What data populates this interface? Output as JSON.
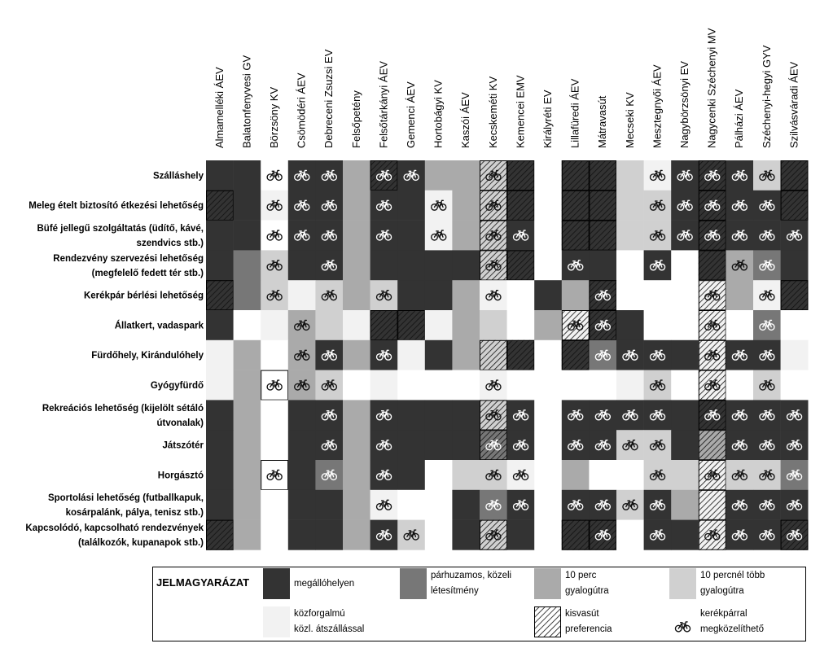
{
  "chart_data": {
    "type": "heatmap",
    "title": "",
    "xlabel": "",
    "ylabel": "",
    "columns": [
      "Almamelléki ÁEV",
      "Balatonfenyvesi GV",
      "Börzsöny KV",
      "Csömödéri ÁEV",
      "Debreceni Zsuzsi EV",
      "Felsőpetény",
      "Felsőtárkányi ÁEV",
      "Gemenci ÁEV",
      "Hortobágyi KV",
      "Kaszói ÁEV",
      "Kecskeméti KV",
      "Kemencei EMV",
      "Királyréti EV",
      "Lillafüredi ÁEV",
      "Mátravasút",
      "Mecseki KV",
      "Mesztegnyői ÁEV",
      "Nagybörzsönyi EV",
      "Nagycenki Széchenyi MV",
      "Pálházi ÁEV",
      "Széchenyi-hegyi GYV",
      "Szilvásváradi ÁEV"
    ],
    "rows": [
      [
        "Szálláshely"
      ],
      [
        "Meleg ételt biztosító étkezési lehetőség"
      ],
      [
        "Büfé jellegű szolgáltatás (üdítő, kávé,",
        "szendvics stb.)"
      ],
      [
        "Rendezvény szervezési lehetőség",
        "(megfelelő fedett tér stb.)"
      ],
      [
        "Kerékpár bérlési lehetőség"
      ],
      [
        "Állatkert, vadaspark"
      ],
      [
        "Fürdőhely, Kirándulóhely"
      ],
      [
        "Gyógyfürdő"
      ],
      [
        "Rekreációs lehetőség (kijelölt sétáló",
        "útvonalak)"
      ],
      [
        "Játszótér"
      ],
      [
        "Horgásztó"
      ],
      [
        "Sportolási lehetőség (futballkapuk,",
        "kosárpalánk, pálya, tenisz stb.)"
      ],
      [
        "Kapcsolódó, kapcsolható rendezvények",
        "(találkozók, kupanapok stb.)"
      ]
    ],
    "grid": [
      [
        "D1",
        "D1",
        "L3B",
        "D1B",
        "D1B",
        "M3",
        "D1HB",
        "D1B",
        "M3",
        "M3",
        "L4HB",
        "D1H",
        "N",
        "D1H",
        "D1H",
        "L4",
        "N5B",
        "D1B",
        "D1HB",
        "D1B",
        "L4B",
        "D1H"
      ],
      [
        "D1H",
        "D1",
        "N5B",
        "D1B",
        "D1B",
        "M3",
        "D1B",
        "D1",
        "N5B",
        "M3",
        "L4HB",
        "D1H",
        "N",
        "D1H",
        "D1H",
        "L4",
        "L4B",
        "D1B",
        "D1HB",
        "D1B",
        "D1B",
        "D1H"
      ],
      [
        "D1",
        "D1",
        "L3B",
        "D1B",
        "D1B",
        "M3",
        "D1B",
        "D1",
        "N5B",
        "M3",
        "L4HB",
        "D1B",
        "N",
        "D1H",
        "D1H",
        "L4",
        "L4B",
        "D1B",
        "D1HB",
        "D1B",
        "D1B",
        "D1B"
      ],
      [
        "D1",
        "P2",
        "L4B",
        "D1",
        "D1B",
        "M3",
        "D1",
        "D1",
        "D1",
        "D1",
        "L4HB",
        "D1H",
        "N",
        "D1B",
        "D1",
        "N",
        "D1B",
        "N",
        "D1H",
        "M3B",
        "P2B",
        "D1"
      ],
      [
        "D1H",
        "P2",
        "L4B",
        "N5",
        "L4B",
        "M3",
        "L4B",
        "D1",
        "D1",
        "M3",
        "N5B",
        "N",
        "D1",
        "M3",
        "D1HB",
        "N",
        "N",
        "N",
        "N5HB",
        "M3",
        "N5B",
        "D1H"
      ],
      [
        "D1",
        "N",
        "N5",
        "M3B",
        "L4",
        "N5",
        "D1H",
        "D1H",
        "N5",
        "M3",
        "L4",
        "N",
        "M3",
        "N5HB",
        "D1HB",
        "D1",
        "N",
        "N",
        "N5HB",
        "N",
        "P2B",
        "N"
      ],
      [
        "N5",
        "M3",
        "N",
        "M3B",
        "D1B",
        "M3",
        "D1B",
        "N5",
        "D1",
        "M3",
        "L4H",
        "D1H",
        "N",
        "D1H",
        "P2B",
        "D1B",
        "D1B",
        "D1",
        "N5HB",
        "D1B",
        "D1B",
        "N5"
      ],
      [
        "N5",
        "M3",
        "WB",
        "M3B",
        "L4B",
        "N",
        "N5",
        "N",
        "N",
        "N",
        "N5B",
        "N",
        "N",
        "N",
        "N",
        "N5",
        "L4B",
        "N",
        "N5HB",
        "N",
        "L4B",
        "N"
      ],
      [
        "D1",
        "M3",
        "N",
        "D1",
        "D1B",
        "M3",
        "D1B",
        "D1",
        "D1",
        "D1",
        "L4HB",
        "D1B",
        "N",
        "D1B",
        "D1B",
        "D1B",
        "D1B",
        "D1",
        "D1HB",
        "D1B",
        "D1B",
        "D1B"
      ],
      [
        "D1",
        "M3",
        "N",
        "D1",
        "D1B",
        "M3",
        "D1B",
        "D1",
        "D1",
        "D1",
        "P2HB",
        "D1B",
        "N",
        "D1B",
        "D1B",
        "L4B",
        "L4B",
        "D1",
        "M3H",
        "D1B",
        "D1B",
        "D1B"
      ],
      [
        "D1",
        "M3",
        "WB",
        "D1",
        "P2B",
        "M3",
        "D1B",
        "D1",
        "N",
        "L4",
        "L4B",
        "N5B",
        "N",
        "M3",
        "N",
        "N",
        "L4B",
        "L4",
        "N5HB",
        "L4B",
        "L4B",
        "P2B"
      ],
      [
        "D1",
        "M3",
        "N",
        "D1",
        "D1",
        "M3",
        "N5B",
        "N",
        "N",
        "D1",
        "P2B",
        "D1B",
        "N",
        "D1B",
        "D1B",
        "L4B",
        "D1B",
        "M3",
        "N5H",
        "D1B",
        "D1B",
        "D1B"
      ],
      [
        "D1H",
        "M3",
        "N",
        "D1",
        "D1",
        "M3",
        "D1B",
        "L4B",
        "N",
        "D1",
        "L4HB",
        "D1",
        "N",
        "D1H",
        "D1HB",
        "N",
        "D1B",
        "D1",
        "N5HB",
        "D1B",
        "D1B",
        "D1HB"
      ]
    ],
    "palette": {
      "D1": "#333333",
      "P2": "#777777",
      "M3": "#aaaaaa",
      "L4": "#d0d0d0",
      "N5": "#f2f2f2",
      "N": "#ffffff"
    },
    "legend": {
      "title": "JELMAGYARÁZAT",
      "entries": [
        {
          "code": "D1",
          "lines": [
            "megállóhelyen"
          ]
        },
        {
          "code": "P2",
          "lines": [
            "párhuzamos, közeli",
            "létesítmény"
          ]
        },
        {
          "code": "M3",
          "lines": [
            "10 perc",
            "gyalogútra"
          ]
        },
        {
          "code": "L4",
          "lines": [
            "10 percnél több",
            "gyalogútra"
          ]
        },
        {
          "code": "N5",
          "lines": [
            "közforgalmú",
            "közl. átszállással"
          ]
        },
        {
          "code": "H",
          "lines": [
            "kisvasút",
            "preferencia"
          ]
        },
        {
          "code": "B",
          "lines": [
            "kerékpárral",
            "megközelíthető"
          ]
        }
      ]
    }
  }
}
